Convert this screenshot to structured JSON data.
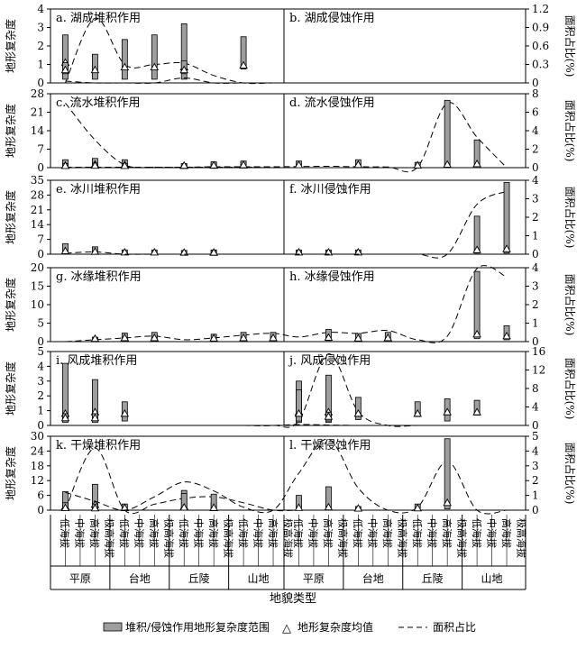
{
  "chart_data": {
    "type": "bar",
    "description": "12 panels: terrain complexity range (gray bars), mean (triangles) and area share (dashed line) across landform categories",
    "xlabel": "地貌类型",
    "ylabel_left": "地形复杂度",
    "ylabel_right": "面积占比(%)",
    "groups": [
      "平原",
      "台地",
      "丘陵",
      "山地"
    ],
    "subcategories": [
      "低海拔",
      "中海拔",
      "高海拔",
      "极高海拔"
    ],
    "legend": {
      "bar": "堆积/侵蚀作用地形复杂度范围",
      "mean": "地形复杂度均值",
      "line": "面积占比"
    },
    "rows": [
      {
        "ylim": [
          0,
          4
        ],
        "yticks": [
          0,
          1,
          2,
          3,
          4
        ],
        "ylim_right": [
          0,
          1.2
        ],
        "yticks_right": [
          "0",
          "0.3",
          "0.6",
          "0.9",
          "1.2"
        ],
        "left": {
          "title": "a. 湖成堆积作用",
          "ranges": [
            [
              0.2,
              2.6
            ],
            [
              0.2,
              1.55
            ],
            [
              0.2,
              2.35
            ],
            [
              0.2,
              2.6
            ],
            [
              0.2,
              3.2
            ],
            null,
            [
              0.75,
              2.5
            ],
            null,
            null,
            null,
            null,
            null,
            null,
            null,
            null,
            null
          ],
          "means": [
            1.1,
            0.7,
            0.85,
            0.85,
            0.85,
            null,
            0.95,
            null,
            null,
            null,
            null,
            null,
            null,
            null,
            null,
            null
          ],
          "area": [
            0.0,
            1.05,
            0.3,
            0.3,
            0.32,
            0.12,
            0.0,
            0.0,
            0.0,
            0.0,
            0.0,
            0.0,
            0.0,
            0.0,
            0.0,
            0.0
          ]
        },
        "right": {
          "title": "b. 湖成侵蚀作用",
          "ranges": [
            [
              0.5,
              1.1
            ],
            null,
            null,
            null,
            [
              0.5,
              1.2
            ],
            null,
            null,
            null,
            null,
            null,
            null,
            null,
            null,
            null,
            null,
            null
          ],
          "means": [
            0.7,
            null,
            null,
            null,
            0.7,
            null,
            null,
            null,
            null,
            null,
            null,
            null,
            null,
            null,
            null,
            null
          ],
          "area": [
            0.03,
            0.0,
            0.0,
            0.0,
            0.08,
            0.0,
            0.0,
            0.0,
            0.0,
            0.0,
            0.0,
            0.0,
            0.0,
            0.0,
            0.0,
            0.0
          ]
        }
      },
      {
        "ylim": [
          0,
          28
        ],
        "yticks": [
          0,
          7,
          14,
          21,
          28
        ],
        "ylim_right": [
          0,
          8
        ],
        "yticks_right": [
          "0",
          "2",
          "4",
          "6",
          "8"
        ],
        "left": {
          "title": "c. 流水堆积作用",
          "ranges": [
            [
              0.3,
              3.0
            ],
            [
              0.3,
              3.5
            ],
            [
              0.3,
              3.0
            ],
            null,
            [
              0.3,
              1.5
            ],
            [
              0.3,
              1.8
            ],
            [
              0.3,
              2.2
            ],
            null,
            null,
            null,
            null,
            null,
            null,
            null,
            null,
            null
          ],
          "means": [
            0.8,
            1.2,
            1.0,
            null,
            0.7,
            0.8,
            0.9,
            null,
            null,
            null,
            null,
            null,
            null,
            null,
            null,
            null
          ],
          "area": [
            7.0,
            3.0,
            0.3,
            0.05,
            0.05,
            0.05,
            0.05,
            0.0,
            0.0,
            0.0,
            0.0,
            0.0,
            0.0,
            0.0,
            0.0,
            0.0
          ]
        },
        "right": {
          "title": "d. 流水侵蚀作用",
          "ranges": [
            [
              0.3,
              1.5
            ],
            [
              0.3,
              1.7
            ],
            [
              0.3,
              1.5
            ],
            null,
            [
              0.3,
              1.5
            ],
            [
              0.3,
              2.2
            ],
            [
              0.3,
              2.5
            ],
            null,
            [
              0.3,
              2.5
            ],
            null,
            [
              0.3,
              3.0
            ],
            null,
            [
              0.3,
              2.0
            ],
            [
              0.8,
              25.5
            ],
            [
              0.5,
              10.5
            ],
            null
          ],
          "means": [
            0.7,
            0.8,
            0.7,
            null,
            0.8,
            0.9,
            1.0,
            null,
            1.0,
            null,
            1.1,
            null,
            0.9,
            1.2,
            1.4,
            null
          ],
          "area": [
            0.05,
            0.05,
            0.05,
            0.05,
            0.05,
            0.1,
            0.1,
            0.1,
            0.12,
            0.15,
            0.1,
            0.08,
            0.05,
            7.0,
            3.3,
            0.0
          ]
        }
      },
      {
        "ylim": [
          0,
          35
        ],
        "yticks": [
          0,
          7,
          14,
          21,
          28,
          35
        ],
        "ylim_right": [
          0,
          4
        ],
        "yticks_right": [
          "0",
          "1",
          "2",
          "3",
          "4"
        ],
        "left": {
          "title": "e. 冰川堆积作用",
          "ranges": [
            [
              0.4,
              5.0
            ],
            [
              0.4,
              3.5
            ],
            [
              0.4,
              2.0
            ],
            null,
            [
              0.4,
              1.8
            ],
            [
              0.4,
              2.0
            ],
            null,
            null,
            [
              0.4,
              2.0
            ],
            [
              0.4,
              2.0
            ],
            [
              0.4,
              2.0
            ],
            null,
            null,
            null,
            null,
            null
          ],
          "means": [
            1.5,
            1.2,
            0.9,
            null,
            0.8,
            0.8,
            null,
            null,
            0.9,
            0.9,
            0.9,
            null,
            null,
            null,
            null,
            null
          ],
          "area": [
            0.05,
            0.12,
            0.0,
            0.0,
            0.0,
            0.0,
            0.0,
            0.0,
            0.0,
            0.0,
            0.0,
            0.0,
            0.0,
            0.0,
            0.0,
            0.0
          ]
        },
        "right": {
          "title": "f. 冰川侵蚀作用",
          "ranges": [
            null,
            null,
            null,
            [
              0.4,
              2.0
            ],
            null,
            [
              0.4,
              1.8
            ],
            null,
            null,
            null,
            null,
            null,
            null,
            null,
            null,
            [
              0.5,
              18.0
            ],
            [
              0.5,
              34.0
            ]
          ],
          "means": [
            null,
            null,
            null,
            0.9,
            null,
            0.8,
            null,
            null,
            null,
            null,
            null,
            null,
            null,
            null,
            2.0,
            2.5
          ],
          "area": [
            0.0,
            0.0,
            0.0,
            0.0,
            0.0,
            0.0,
            0.0,
            0.0,
            0.0,
            0.0,
            0.0,
            0.0,
            0.0,
            0.0,
            2.7,
            3.4
          ]
        }
      },
      {
        "ylim": [
          0,
          20
        ],
        "yticks": [
          0,
          5,
          10,
          15,
          20
        ],
        "ylim_right": [
          0,
          4
        ],
        "yticks_right": [
          "0",
          "1",
          "2",
          "3",
          "4"
        ],
        "left": {
          "title": "g. 冰缘堆积作用",
          "ranges": [
            null,
            [
              0.3,
              1.0
            ],
            [
              0.3,
              1.2
            ],
            [
              0.3,
              1.8
            ],
            null,
            null,
            null,
            null,
            null,
            null,
            null,
            null,
            null,
            null,
            null,
            null
          ],
          "means": [
            null,
            0.7,
            0.8,
            0.9,
            null,
            null,
            null,
            null,
            null,
            null,
            null,
            null,
            null,
            null,
            null,
            null
          ],
          "area": [
            0.0,
            0.0,
            0.0,
            0.0,
            0.0,
            0.0,
            0.0,
            0.0,
            0.0,
            0.0,
            0.0,
            0.0,
            0.0,
            0.0,
            0.0,
            0.0
          ]
        },
        "right": {
          "title": "h. 冰缘侵蚀作用",
          "ranges": [
            null,
            [
              0.3,
              1.2
            ],
            [
              0.3,
              2.3
            ],
            [
              0.3,
              2.5
            ],
            null,
            [
              0.3,
              2.0
            ],
            [
              0.3,
              2.5
            ],
            [
              0.3,
              2.5
            ],
            null,
            [
              0.3,
              3.3
            ],
            [
              0.3,
              2.2
            ],
            [
              0.3,
              2.5
            ],
            null,
            null,
            [
              0.8,
              19.0
            ],
            [
              0.5,
              4.3
            ]
          ],
          "means": [
            null,
            0.8,
            1.0,
            1.0,
            null,
            0.9,
            1.0,
            1.0,
            null,
            1.1,
            0.9,
            1.0,
            null,
            null,
            2.0,
            1.5
          ],
          "area": [
            0.0,
            0.1,
            0.2,
            0.3,
            0.1,
            0.2,
            0.35,
            0.45,
            0.25,
            0.5,
            0.45,
            0.6,
            0.1,
            0.3,
            4.0,
            3.5
          ]
        }
      },
      {
        "ylim": [
          0,
          5
        ],
        "yticks": [
          0,
          1,
          2,
          3,
          4,
          5
        ],
        "ylim_right": [
          0,
          16
        ],
        "yticks_right": [
          "0",
          "4",
          "8",
          "12",
          "16"
        ],
        "left": {
          "title": "i. 风成堆积作用",
          "ranges": [
            [
              0.2,
              4.2
            ],
            [
              0.2,
              3.1
            ],
            [
              0.3,
              1.6
            ],
            null,
            null,
            null,
            null,
            null,
            [
              0.2,
              3.0
            ],
            [
              0.2,
              3.4
            ],
            [
              0.4,
              1.9
            ],
            null,
            [
              0.6,
              1.6
            ],
            [
              0.3,
              1.8
            ],
            [
              0.7,
              1.7
            ],
            null
          ],
          "means": [
            0.8,
            0.9,
            0.8,
            null,
            null,
            null,
            null,
            null,
            0.9,
            0.9,
            0.8,
            null,
            0.8,
            0.9,
            0.9,
            null
          ],
          "area": [
            0.0,
            0.0,
            0.0,
            0.0,
            0.0,
            0.0,
            0.0,
            0.0,
            1.0,
            15.5,
            3.0,
            0.0,
            0.0,
            0.0,
            0.0,
            0.0
          ]
        },
        "right": {
          "title": "j. 风成侵蚀作用",
          "ranges": [
            [
              0.4,
              0.8
            ],
            [
              0.4,
              0.8
            ],
            null,
            null,
            null,
            null,
            null,
            null,
            [
              0.3,
              2.4
            ],
            [
              0.3,
              0.9
            ],
            null,
            null,
            null,
            null,
            null,
            null
          ],
          "means": [
            0.5,
            0.5,
            null,
            null,
            null,
            null,
            null,
            null,
            0.8,
            0.6,
            null,
            null,
            null,
            null,
            null,
            null
          ],
          "area": [
            0.0,
            0.0,
            0.0,
            0.0,
            0.0,
            0.0,
            0.0,
            0.0,
            0.2,
            0.1,
            0.0,
            0.0,
            0.0,
            0.0,
            0.0,
            0.0
          ]
        }
      },
      {
        "ylim": [
          0,
          30
        ],
        "yticks": [
          0,
          6,
          12,
          18,
          24,
          30
        ],
        "ylim_right": [
          0,
          5
        ],
        "yticks_right": [
          "0",
          "1",
          "2",
          "3",
          "4",
          "5"
        ],
        "left": {
          "title": "k. 干燥堆积作用",
          "ranges": [
            [
              0.4,
              7.5
            ],
            [
              0.4,
              10.5
            ],
            [
              0.4,
              2.5
            ],
            null,
            [
              0.4,
              8.0
            ],
            [
              0.4,
              3.0
            ],
            null,
            null,
            null,
            null,
            null,
            null,
            null,
            null,
            null,
            null
          ],
          "means": [
            1.5,
            2.2,
            0.9,
            null,
            1.5,
            0.9,
            null,
            null,
            null,
            null,
            null,
            null,
            null,
            null,
            null,
            null
          ],
          "area": [
            0.0,
            4.2,
            0.0,
            0.4,
            0.8,
            0.9,
            0.5,
            0.0,
            0.0,
            0.0,
            0.0,
            0.0,
            0.0,
            0.0,
            0.0,
            0.0
          ]
        },
        "right": {
          "title": "l. 干燥侵蚀作用",
          "ranges": [
            [
              0.4,
              3.0
            ],
            [
              0.4,
              2.5
            ],
            null,
            null,
            [
              0.4,
              6.8
            ],
            [
              0.4,
              6.5
            ],
            null,
            null,
            [
              0.4,
              6.0
            ],
            [
              0.4,
              9.5
            ],
            [
              0.4,
              1.5
            ],
            null,
            [
              0.4,
              2.5
            ],
            [
              0.5,
              29.0
            ],
            null,
            null
          ],
          "means": [
            0.9,
            0.8,
            null,
            null,
            1.1,
            1.0,
            null,
            null,
            1.0,
            1.2,
            0.7,
            null,
            0.8,
            3.0,
            null,
            null
          ],
          "area": [
            1.2,
            0.6,
            0.0,
            0.9,
            1.9,
            1.3,
            0.2,
            0.0,
            2.5,
            4.8,
            1.5,
            0.0,
            0.2,
            3.3,
            0.0,
            0.0
          ]
        }
      }
    ]
  }
}
